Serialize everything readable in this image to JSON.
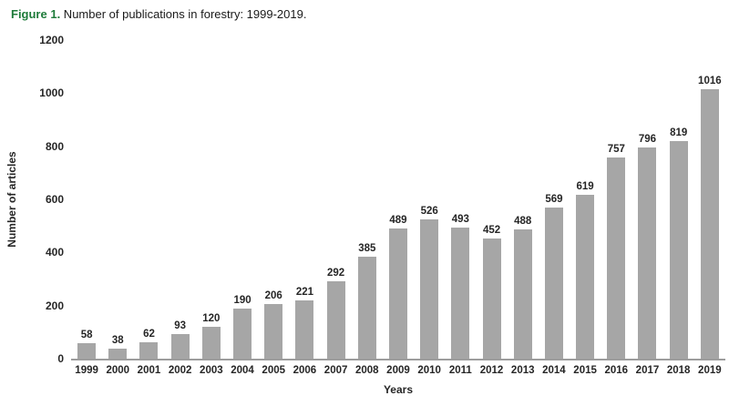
{
  "figure": {
    "title_prefix": "Figure 1.",
    "title_text": " Number of publications in forestry: 1999-2019."
  },
  "colors": {
    "bar": "#a6a6a6",
    "axis_line": "#9d9d9d",
    "title_prefix_green": "#1e7b3a",
    "text": "#262626"
  },
  "chart_data": {
    "type": "bar",
    "title": "Figure 1. Number of publications in forestry: 1999-2019.",
    "categories": [
      "1999",
      "2000",
      "2001",
      "2002",
      "2003",
      "2004",
      "2005",
      "2006",
      "2007",
      "2008",
      "2009",
      "2010",
      "2011",
      "2012",
      "2013",
      "2014",
      "2015",
      "2016",
      "2017",
      "2018",
      "2019"
    ],
    "values": [
      58,
      38,
      62,
      93,
      120,
      190,
      206,
      221,
      292,
      385,
      489,
      526,
      493,
      452,
      488,
      569,
      619,
      757,
      796,
      819,
      1016
    ],
    "xlabel": "Years",
    "ylabel": "Number of articles",
    "ylim": [
      0,
      1200
    ],
    "yticks": [
      0,
      200,
      400,
      600,
      800,
      1000,
      1200
    ],
    "grid": false,
    "legend": false,
    "data_labels": true,
    "bar_color": "#a6a6a6"
  }
}
